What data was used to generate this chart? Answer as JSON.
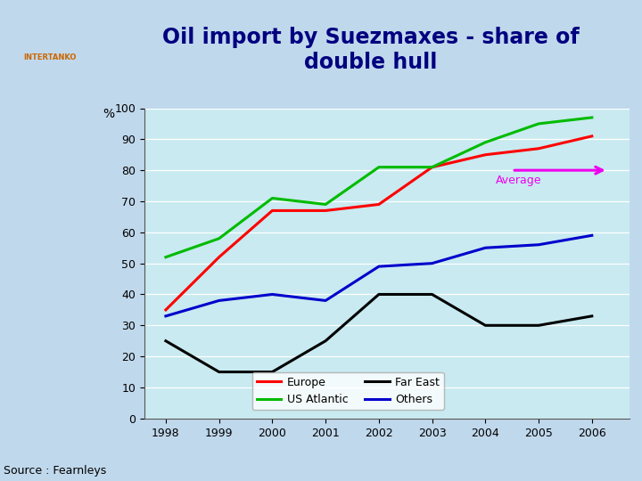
{
  "title_line1": "Oil import by Suezmaxes - share of",
  "title_line2": "double hull",
  "ylabel": "%",
  "source": "Source : Fearnleys",
  "years": [
    1998,
    1999,
    2000,
    2001,
    2002,
    2003,
    2004,
    2005,
    2006
  ],
  "europe": [
    35,
    52,
    67,
    67,
    69,
    81,
    85,
    87,
    91
  ],
  "us_atlantic": [
    52,
    58,
    71,
    69,
    81,
    81,
    89,
    95,
    97
  ],
  "far_east": [
    25,
    15,
    15,
    25,
    40,
    40,
    30,
    30,
    33
  ],
  "others": [
    33,
    38,
    40,
    38,
    49,
    50,
    55,
    56,
    59
  ],
  "europe_color": "#ff0000",
  "us_atlantic_color": "#00bb00",
  "far_east_color": "#000000",
  "others_color": "#0000cc",
  "average_color": "#ee00ee",
  "bg_header": "#b8d8ec",
  "bg_sidebar": "#7aadd4",
  "bg_chart_area": "#c8eaf0",
  "bg_outer": "#c0d8ec",
  "title_color": "#000080",
  "ylim": [
    0,
    100
  ],
  "title_fontsize": 17,
  "axis_fontsize": 9,
  "legend_fontsize": 9,
  "source_fontsize": 9
}
